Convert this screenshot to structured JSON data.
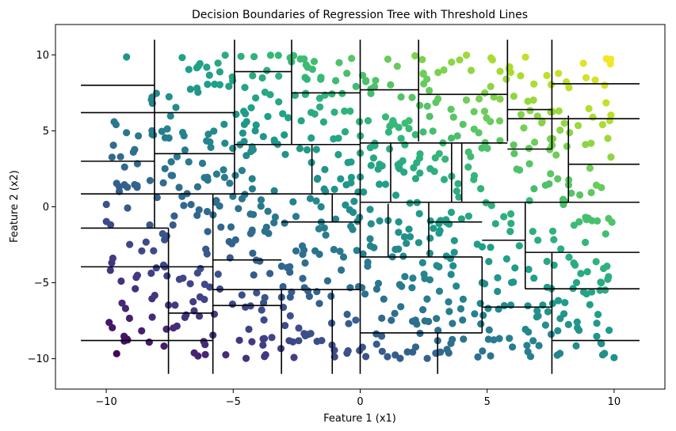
{
  "chart_data": {
    "type": "scatter",
    "title": "Decision Boundaries of Regression Tree with Threshold Lines",
    "xlabel": "Feature 1 (x1)",
    "ylabel": "Feature 2 (x2)",
    "xlim": [
      -12,
      12
    ],
    "ylim": [
      -12,
      12
    ],
    "xticks": [
      -10,
      -5,
      0,
      5,
      10
    ],
    "yticks": [
      -10,
      -5,
      0,
      5,
      10
    ],
    "xtick_labels": [
      "−10",
      "−5",
      "0",
      "5",
      "10"
    ],
    "ytick_labels": [
      "−10",
      "−5",
      "0",
      "5",
      "10"
    ],
    "grid": false,
    "colormap": "viridis",
    "color_value": "x1 + x2",
    "point_color_range": [
      -20,
      20
    ],
    "point_count": 800,
    "point_domain": {
      "x1": [
        -10,
        10
      ],
      "x2": [
        -10,
        10
      ]
    },
    "threshold_lines": {
      "vertical": [
        {
          "x": -8.1,
          "y": [
            -1.4,
            11
          ]
        },
        {
          "x": -7.55,
          "y": [
            -11,
            -1.4
          ]
        },
        {
          "x": -5.8,
          "y": [
            -11,
            0.85
          ]
        },
        {
          "x": -4.95,
          "y": [
            0.85,
            11
          ]
        },
        {
          "x": -3.1,
          "y": [
            -11,
            -5.45
          ]
        },
        {
          "x": -2.7,
          "y": [
            4.1,
            11
          ]
        },
        {
          "x": 0,
          "y": [
            -11,
            11
          ]
        },
        {
          "x": -1.1,
          "y": [
            -11,
            -5.45
          ]
        },
        {
          "x": 2.3,
          "y": [
            4.3,
            11
          ]
        },
        {
          "x": 3.05,
          "y": [
            -11,
            -8.3
          ]
        },
        {
          "x": 4.8,
          "y": [
            -8.3,
            -3.3
          ]
        },
        {
          "x": 5.8,
          "y": [
            4.3,
            11
          ]
        },
        {
          "x": 7.55,
          "y": [
            -11,
            -3.0
          ]
        },
        {
          "x": 7.55,
          "y": [
            3.8,
            11
          ]
        },
        {
          "x": 1.1,
          "y": [
            -3.3,
            0.2
          ]
        },
        {
          "x": 2.7,
          "y": [
            -3.3,
            0.3
          ]
        },
        {
          "x": 3.6,
          "y": [
            0.3,
            4.2
          ]
        },
        {
          "x": 4.0,
          "y": [
            0.3,
            4.2
          ]
        },
        {
          "x": 6.5,
          "y": [
            -5.4,
            0.3
          ]
        },
        {
          "x": 8.2,
          "y": [
            0.3,
            6.0
          ]
        },
        {
          "x": -1.9,
          "y": [
            0.85,
            4.1
          ]
        },
        {
          "x": -1.1,
          "y": [
            -1.0,
            0.85
          ]
        },
        {
          "x": 1.2,
          "y": [
            0.3,
            4.2
          ]
        }
      ],
      "horizontal": [
        {
          "y": 8.0,
          "x": [
            -11,
            -8.1
          ]
        },
        {
          "y": 6.2,
          "x": [
            -11,
            -4.95
          ]
        },
        {
          "y": 3.0,
          "x": [
            -11,
            -8.1
          ]
        },
        {
          "y": 0.85,
          "x": [
            -11,
            0
          ]
        },
        {
          "y": -1.4,
          "x": [
            -11,
            -7.55
          ]
        },
        {
          "y": -3.95,
          "x": [
            -11,
            -5.8
          ]
        },
        {
          "y": -8.8,
          "x": [
            -11,
            -5.8
          ]
        },
        {
          "y": 8.9,
          "x": [
            -4.95,
            -2.7
          ]
        },
        {
          "y": 7.5,
          "x": [
            -2.7,
            0
          ]
        },
        {
          "y": 4.1,
          "x": [
            -4.95,
            0
          ]
        },
        {
          "y": 3.5,
          "x": [
            -8.1,
            -4.95
          ]
        },
        {
          "y": -3.5,
          "x": [
            -5.8,
            -3.1
          ]
        },
        {
          "y": -5.45,
          "x": [
            -5.8,
            0
          ]
        },
        {
          "y": -6.5,
          "x": [
            -5.8,
            -3.1
          ]
        },
        {
          "y": -7.0,
          "x": [
            -7.55,
            -5.8
          ]
        },
        {
          "y": -1.0,
          "x": [
            -3.1,
            0
          ]
        },
        {
          "y": 7.7,
          "x": [
            0,
            2.3
          ]
        },
        {
          "y": 7.4,
          "x": [
            2.3,
            5.8
          ]
        },
        {
          "y": 4.2,
          "x": [
            0,
            5.8
          ]
        },
        {
          "y": 6.4,
          "x": [
            5.8,
            7.55
          ]
        },
        {
          "y": 8.1,
          "x": [
            7.55,
            11
          ]
        },
        {
          "y": 5.8,
          "x": [
            5.8,
            11
          ]
        },
        {
          "y": 3.8,
          "x": [
            5.8,
            7.55
          ]
        },
        {
          "y": 2.8,
          "x": [
            8.2,
            11
          ]
        },
        {
          "y": 0.3,
          "x": [
            0,
            11
          ]
        },
        {
          "y": -2.2,
          "x": [
            4.8,
            6.5
          ]
        },
        {
          "y": -3.3,
          "x": [
            0,
            4.8
          ]
        },
        {
          "y": -3.0,
          "x": [
            6.5,
            11
          ]
        },
        {
          "y": -5.4,
          "x": [
            6.5,
            11
          ]
        },
        {
          "y": -6.6,
          "x": [
            4.8,
            7.55
          ]
        },
        {
          "y": -8.3,
          "x": [
            0,
            4.8
          ]
        },
        {
          "y": -8.8,
          "x": [
            7.55,
            11
          ]
        },
        {
          "y": -1.0,
          "x": [
            2.7,
            4.8
          ]
        }
      ]
    }
  }
}
